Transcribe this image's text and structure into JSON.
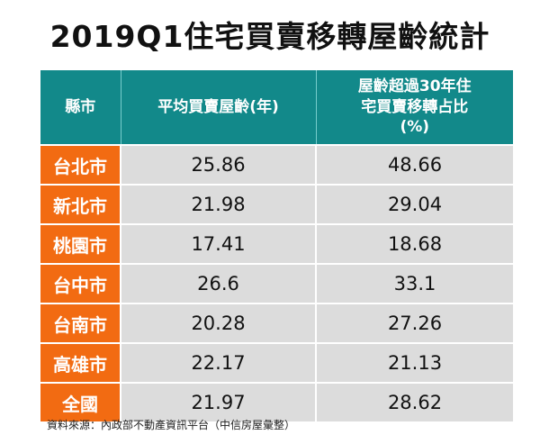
{
  "chart_data": {
    "type": "table",
    "title": "2019Q1住宅買賣移轉屋齡統計",
    "columns": [
      "縣市",
      "平均買賣屋齡(年)",
      "屋齡超過30年住宅買賣移轉占比(%)"
    ],
    "rows": [
      {
        "city": "台北市",
        "avg_age": "25.86",
        "over30_pct": "48.66"
      },
      {
        "city": "新北市",
        "avg_age": "21.98",
        "over30_pct": "29.04"
      },
      {
        "city": "桃園市",
        "avg_age": "17.41",
        "over30_pct": "18.68"
      },
      {
        "city": "台中市",
        "avg_age": "26.6",
        "over30_pct": "33.1"
      },
      {
        "city": "台南市",
        "avg_age": "20.28",
        "over30_pct": "27.26"
      },
      {
        "city": "高雄市",
        "avg_age": "22.17",
        "over30_pct": "21.13"
      },
      {
        "city": "全國",
        "avg_age": "21.97",
        "over30_pct": "28.62"
      }
    ],
    "source": "資料來源：內政部不動產資訊平台（中信房屋彙整）"
  },
  "colors": {
    "header": "#12898a",
    "city": "#f26b12",
    "cell": "#dcdcdc"
  }
}
